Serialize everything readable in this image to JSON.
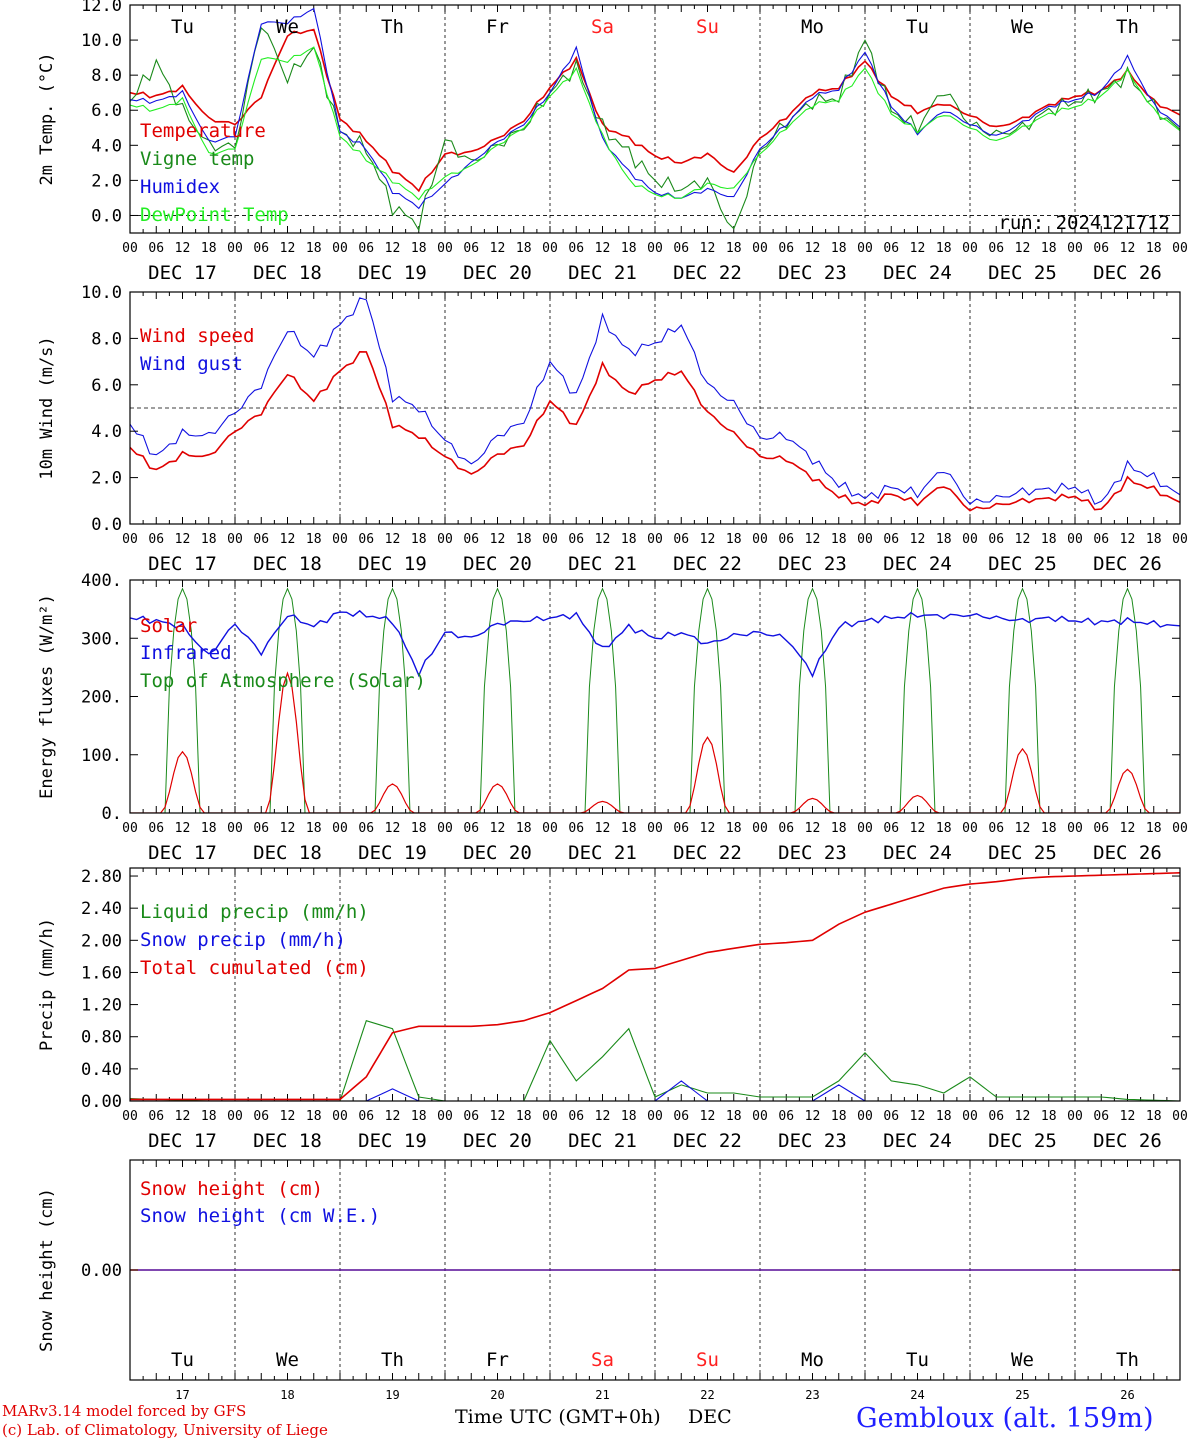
{
  "footer": {
    "credit_line1": "MARv3.14 model forced by GFS",
    "credit_line2": "(c) Lab. of Climatology, University of Liege",
    "x_title": "Time UTC (GMT+0h)",
    "x_month": "DEC",
    "station": "Gembloux (alt. 159m)"
  },
  "colors": {
    "red": "#e00000",
    "green": "#1a8a1a",
    "blue": "#1010e0",
    "lightgreen": "#22ee22",
    "weekend": "#ff2020"
  },
  "days": {
    "names": [
      "Tu",
      "We",
      "Th",
      "Fr",
      "Sa",
      "Su",
      "Mo",
      "Tu",
      "We",
      "Th"
    ],
    "weekend": [
      false,
      false,
      false,
      false,
      true,
      true,
      false,
      false,
      false,
      false
    ],
    "dates": [
      "DEC 17",
      "DEC 18",
      "DEC 19",
      "DEC 20",
      "DEC 21",
      "DEC 22",
      "DEC 23",
      "DEC 24",
      "DEC 25",
      "DEC 26"
    ],
    "numbers": [
      "17",
      "18",
      "19",
      "20",
      "21",
      "22",
      "23",
      "24",
      "25",
      "26"
    ],
    "hour_labels": [
      "00",
      "06",
      "12",
      "18"
    ],
    "final_hour_label": "00"
  },
  "chart_data": [
    {
      "type": "line",
      "ylabel": "2m Temp. (°C)",
      "ylim": [
        -1,
        12
      ],
      "yticks": [
        0,
        2,
        4,
        6,
        8,
        10,
        12
      ],
      "ytick_labels": [
        "0.0",
        "2.0",
        "4.0",
        "6.0",
        "8.0",
        "10.0",
        "12.0"
      ],
      "ref_line": 0,
      "annotation": "run: 2024121712",
      "x_hours": [
        0,
        6,
        12,
        18,
        24,
        30,
        36,
        42,
        48,
        54,
        60,
        66,
        72,
        78,
        84,
        90,
        96,
        102,
        108,
        114,
        120,
        126,
        132,
        138,
        144,
        150,
        156,
        162,
        168,
        174,
        180,
        186,
        192,
        198,
        204,
        210,
        216,
        222,
        228,
        234,
        240
      ],
      "series": [
        {
          "name": "Temperature",
          "color": "red",
          "values": [
            7.0,
            6.8,
            7.3,
            5.5,
            5.2,
            6.8,
            10.3,
            10.6,
            5.5,
            4.3,
            2.6,
            1.5,
            3.5,
            3.6,
            4.4,
            5.4,
            7.3,
            8.9,
            5.1,
            4.4,
            3.4,
            3.0,
            3.5,
            2.4,
            4.4,
            5.6,
            7.0,
            7.3,
            8.8,
            6.8,
            5.9,
            6.4,
            5.7,
            5.0,
            5.5,
            6.3,
            6.8,
            7.1,
            8.2,
            6.5,
            5.7
          ]
        },
        {
          "name": "Vigne temp",
          "color": "green",
          "values": [
            6.5,
            8.7,
            6.0,
            4.0,
            3.9,
            11.0,
            7.8,
            9.6,
            4.8,
            3.8,
            0.5,
            -0.5,
            4.3,
            3.0,
            4.0,
            5.0,
            7.0,
            8.5,
            5.0,
            3.6,
            2.0,
            1.5,
            2.0,
            -1.0,
            3.7,
            5.3,
            6.5,
            6.7,
            10.0,
            6.0,
            5.0,
            7.2,
            5.2,
            4.6,
            5.0,
            6.0,
            6.5,
            7.0,
            8.0,
            6.2,
            4.8
          ]
        },
        {
          "name": "Humidex",
          "color": "blue",
          "values": [
            6.6,
            6.5,
            7.0,
            4.2,
            4.5,
            11.0,
            11.0,
            11.8,
            4.8,
            3.8,
            1.4,
            0.5,
            1.8,
            3.0,
            4.2,
            5.2,
            7.0,
            9.5,
            4.3,
            2.5,
            1.3,
            1.0,
            1.5,
            1.0,
            3.8,
            5.2,
            6.8,
            7.2,
            9.3,
            6.2,
            4.7,
            6.0,
            5.2,
            4.5,
            5.3,
            6.2,
            6.6,
            7.1,
            9.0,
            6.3,
            5.0
          ]
        },
        {
          "name": "DewPoint Temp",
          "color": "lightgreen",
          "values": [
            6.3,
            6.0,
            6.6,
            3.5,
            3.8,
            9.0,
            8.8,
            9.6,
            4.5,
            3.2,
            2.0,
            1.0,
            2.2,
            2.8,
            4.0,
            5.0,
            6.8,
            8.3,
            4.5,
            2.0,
            1.2,
            1.0,
            1.8,
            1.5,
            3.5,
            5.0,
            6.3,
            6.6,
            8.4,
            5.8,
            4.8,
            5.8,
            5.0,
            4.2,
            5.0,
            5.8,
            6.2,
            6.8,
            8.2,
            6.0,
            4.8
          ]
        }
      ]
    },
    {
      "type": "line",
      "ylabel": "10m Wind (m/s)",
      "ylim": [
        0,
        10
      ],
      "yticks": [
        0,
        2,
        4,
        6,
        8,
        10
      ],
      "ytick_labels": [
        "0.0",
        "2.0",
        "4.0",
        "6.0",
        "8.0",
        "10.0"
      ],
      "ref_line": 5,
      "x_hours": [
        0,
        6,
        12,
        18,
        24,
        30,
        36,
        42,
        48,
        54,
        60,
        66,
        72,
        78,
        84,
        90,
        96,
        102,
        108,
        114,
        120,
        126,
        132,
        138,
        144,
        150,
        156,
        162,
        168,
        174,
        180,
        186,
        192,
        198,
        204,
        210,
        216,
        222,
        228,
        234,
        240
      ],
      "series": [
        {
          "name": "Wind speed",
          "color": "red",
          "values": [
            3.3,
            2.3,
            3.0,
            2.9,
            4.0,
            4.8,
            6.5,
            5.3,
            6.6,
            7.5,
            4.3,
            3.8,
            2.9,
            2.1,
            3.0,
            3.4,
            5.3,
            4.2,
            6.8,
            5.6,
            6.2,
            6.6,
            4.8,
            3.9,
            2.9,
            2.8,
            2.0,
            1.2,
            0.8,
            1.3,
            0.9,
            1.7,
            0.6,
            0.8,
            1.0,
            1.1,
            1.2,
            0.6,
            1.9,
            1.5,
            0.9
          ]
        },
        {
          "name": "Wind gust",
          "color": "blue",
          "values": [
            4.3,
            2.9,
            3.9,
            3.8,
            4.8,
            6.0,
            8.4,
            7.2,
            8.6,
            9.8,
            5.5,
            5.0,
            3.6,
            2.5,
            3.8,
            4.4,
            7.0,
            5.5,
            8.8,
            7.4,
            7.8,
            8.6,
            6.0,
            5.2,
            3.7,
            3.8,
            2.8,
            1.7,
            1.1,
            1.6,
            1.3,
            2.4,
            0.9,
            1.1,
            1.4,
            1.5,
            1.6,
            0.9,
            2.5,
            2.0,
            1.2
          ]
        }
      ]
    },
    {
      "type": "line",
      "ylabel": "Energy fluxes (W/m²)",
      "ylim": [
        0,
        400
      ],
      "yticks": [
        0,
        100,
        200,
        300,
        400
      ],
      "ytick_labels": [
        "0.",
        "100.",
        "200.",
        "300.",
        "400."
      ],
      "x_hours": [
        0,
        6,
        12,
        18,
        24,
        30,
        36,
        42,
        48,
        54,
        60,
        66,
        72,
        78,
        84,
        90,
        96,
        102,
        108,
        114,
        120,
        126,
        132,
        138,
        144,
        150,
        156,
        162,
        168,
        174,
        180,
        186,
        192,
        198,
        204,
        210,
        216,
        222,
        228,
        234,
        240
      ],
      "series": [
        {
          "name": "Solar",
          "color": "red",
          "values": [
            0,
            0,
            105,
            0,
            0,
            0,
            240,
            0,
            0,
            0,
            50,
            0,
            0,
            0,
            50,
            0,
            0,
            0,
            20,
            0,
            0,
            0,
            130,
            0,
            0,
            0,
            25,
            0,
            0,
            0,
            30,
            0,
            0,
            0,
            110,
            0,
            0,
            0,
            75,
            0,
            0
          ]
        },
        {
          "name": "Infrared",
          "color": "blue",
          "values": [
            335,
            330,
            320,
            270,
            325,
            275,
            340,
            320,
            345,
            340,
            330,
            240,
            310,
            300,
            325,
            330,
            335,
            340,
            280,
            320,
            300,
            310,
            290,
            305,
            310,
            300,
            240,
            320,
            330,
            335,
            340,
            338,
            340,
            335,
            330,
            335,
            330,
            328,
            330,
            325,
            320
          ]
        },
        {
          "name": "Top of Atmosphere (Solar)",
          "color": "green",
          "day_peaks": [
            385,
            385,
            385,
            385,
            385,
            385,
            385,
            385,
            385,
            385
          ]
        }
      ]
    },
    {
      "type": "line",
      "ylabel": "Precip (mm/h)",
      "ylim": [
        0,
        2.9
      ],
      "yticks": [
        0,
        0.4,
        0.8,
        1.2,
        1.6,
        2.0,
        2.4,
        2.8
      ],
      "ytick_labels": [
        "0.00",
        "0.40",
        "0.80",
        "1.20",
        "1.60",
        "2.00",
        "2.40",
        "2.80"
      ],
      "x_hours": [
        0,
        6,
        12,
        18,
        24,
        30,
        36,
        42,
        48,
        54,
        60,
        66,
        72,
        78,
        84,
        90,
        96,
        102,
        108,
        114,
        120,
        126,
        132,
        138,
        144,
        150,
        156,
        162,
        168,
        174,
        180,
        186,
        192,
        198,
        204,
        210,
        216,
        222,
        228,
        234,
        240
      ],
      "series": [
        {
          "name": "Liquid precip (mm/h)",
          "color": "green",
          "values": [
            0.03,
            0.02,
            0.01,
            0.0,
            0.0,
            0.0,
            0.0,
            0.0,
            0.0,
            1.0,
            0.9,
            0.05,
            0.0,
            0.0,
            0.0,
            0.0,
            0.75,
            0.25,
            0.55,
            0.9,
            0.05,
            0.2,
            0.1,
            0.1,
            0.05,
            0.05,
            0.05,
            0.25,
            0.6,
            0.25,
            0.2,
            0.1,
            0.3,
            0.05,
            0.05,
            0.05,
            0.05,
            0.05,
            0.02,
            0.01,
            0.0
          ]
        },
        {
          "name": "Snow precip (mm/h)",
          "color": "blue",
          "values": [
            0,
            0,
            0,
            0,
            0,
            0,
            0,
            0,
            0,
            0,
            0.15,
            0,
            0,
            0,
            0,
            0,
            0,
            0,
            0,
            0,
            0,
            0.25,
            0,
            0,
            0,
            0,
            0,
            0.2,
            0,
            0,
            0,
            0,
            0,
            0,
            0,
            0,
            0,
            0,
            0,
            0,
            0
          ]
        },
        {
          "name": "Total cumulated (cm)",
          "color": "red",
          "values": [
            0.02,
            0.02,
            0.02,
            0.02,
            0.02,
            0.02,
            0.02,
            0.02,
            0.02,
            0.3,
            0.85,
            0.93,
            0.93,
            0.93,
            0.95,
            1.0,
            1.1,
            1.25,
            1.4,
            1.63,
            1.65,
            1.75,
            1.85,
            1.9,
            1.95,
            1.97,
            2.0,
            2.2,
            2.35,
            2.45,
            2.55,
            2.65,
            2.7,
            2.73,
            2.77,
            2.79,
            2.8,
            2.81,
            2.82,
            2.83,
            2.84
          ]
        }
      ]
    },
    {
      "type": "line",
      "ylabel": "Snow height (cm)",
      "ylim": [
        -1,
        1
      ],
      "yticks": [
        0
      ],
      "ytick_labels": [
        "0.00"
      ],
      "x_hours": [
        0,
        240
      ],
      "series": [
        {
          "name": "Snow height (cm)",
          "color": "red",
          "values": [
            0,
            0
          ]
        },
        {
          "name": "Snow height (cm W.E.)",
          "color": "blue",
          "values": [
            0,
            0
          ]
        }
      ]
    }
  ]
}
